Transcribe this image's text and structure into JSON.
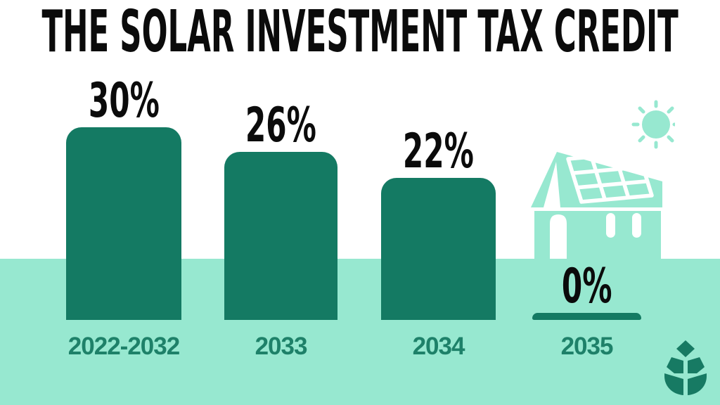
{
  "title": "THE SOLAR INVESTMENT TAX CREDIT",
  "chart_data": {
    "type": "bar",
    "title": "The Solar Investment Tax Credit",
    "categories": [
      "2022-2032",
      "2033",
      "2034",
      "2035"
    ],
    "values": [
      30,
      26,
      22,
      0
    ],
    "value_labels": [
      "30%",
      "26%",
      "22%",
      "0%"
    ],
    "xlabel": "",
    "ylabel": "",
    "ylim": [
      0,
      30
    ],
    "grid": false,
    "legend": "none",
    "bar_orientation": "vertical"
  },
  "colors": {
    "bar": "#147a63",
    "mint": "#97e8d0",
    "year_label": "#1e8169",
    "percent_text": "#0b0b0b",
    "background": "#ffffff",
    "logo": "#177a63"
  },
  "icons": [
    {
      "name": "sun-icon"
    },
    {
      "name": "house-with-solar-panel-icon"
    },
    {
      "name": "leaf-logo-icon"
    }
  ]
}
